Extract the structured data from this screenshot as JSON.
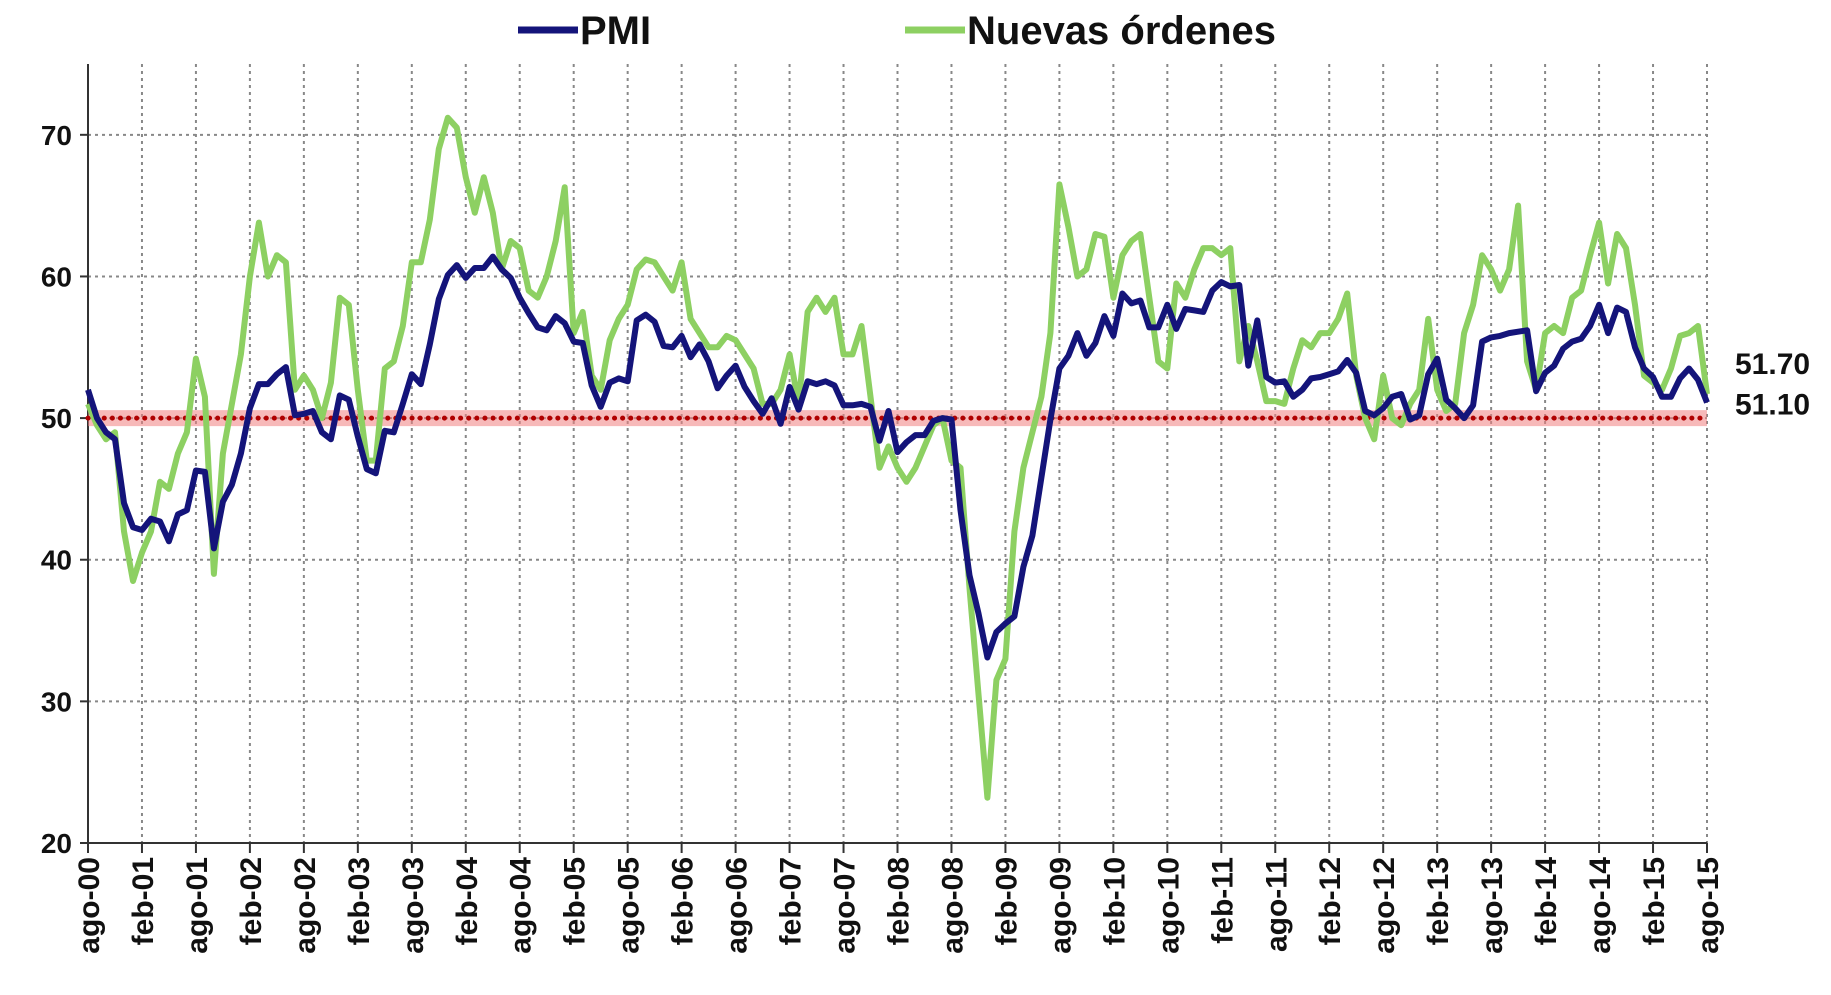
{
  "chart_data": {
    "type": "line",
    "categories": [
      "ago-00",
      null,
      null,
      null,
      null,
      null,
      "feb-01",
      null,
      null,
      null,
      null,
      null,
      "ago-01",
      null,
      null,
      null,
      null,
      null,
      "feb-02",
      null,
      null,
      null,
      null,
      null,
      "ago-02",
      null,
      null,
      null,
      null,
      null,
      "feb-03",
      null,
      null,
      null,
      null,
      null,
      "ago-03",
      null,
      null,
      null,
      null,
      null,
      "feb-04",
      null,
      null,
      null,
      null,
      null,
      "ago-04",
      null,
      null,
      null,
      null,
      null,
      "feb-05",
      null,
      null,
      null,
      null,
      null,
      "ago-05",
      null,
      null,
      null,
      null,
      null,
      "feb-06",
      null,
      null,
      null,
      null,
      null,
      "ago-06",
      null,
      null,
      null,
      null,
      null,
      "feb-07",
      null,
      null,
      null,
      null,
      null,
      "ago-07",
      null,
      null,
      null,
      null,
      null,
      "feb-08",
      null,
      null,
      null,
      null,
      null,
      "ago-08",
      null,
      null,
      null,
      null,
      null,
      "feb-09",
      null,
      null,
      null,
      null,
      null,
      "ago-09",
      null,
      null,
      null,
      null,
      null,
      "feb-10",
      null,
      null,
      null,
      null,
      null,
      "ago-10",
      null,
      null,
      null,
      null,
      null,
      "feb-11",
      null,
      null,
      null,
      null,
      null,
      "ago-11",
      null,
      null,
      null,
      null,
      null,
      "feb-12",
      null,
      null,
      null,
      null,
      null,
      "ago-12",
      null,
      null,
      null,
      null,
      null,
      "feb-13",
      null,
      null,
      null,
      null,
      null,
      "ago-13",
      null,
      null,
      null,
      null,
      null,
      "feb-14",
      null,
      null,
      null,
      null,
      null,
      "ago-14",
      null,
      null,
      null,
      null,
      null,
      "feb-15",
      null,
      null,
      null,
      null,
      null,
      "ago-15"
    ],
    "series": [
      {
        "name": "PMI",
        "color": "#14147a",
        "end_label": "51.10",
        "values": [
          52,
          50,
          49,
          48.5,
          44,
          42.3,
          42.1,
          42.9,
          42.7,
          41.3,
          43.2,
          43.5,
          46.3,
          46.2,
          40.8,
          44.1,
          45.3,
          47.5,
          50.7,
          52.4,
          52.4,
          53.1,
          53.6,
          50.2,
          50.3,
          50.5,
          49,
          48.5,
          51.6,
          51.3,
          48.7,
          46.4,
          46.1,
          49.1,
          49,
          51,
          53.1,
          52.4,
          55.2,
          58.4,
          60.1,
          60.8,
          59.9,
          60.6,
          60.6,
          61.4,
          60.5,
          59.9,
          58.5,
          57.4,
          56.4,
          56.2,
          57.2,
          56.7,
          55.4,
          55.3,
          52.3,
          50.8,
          52.5,
          52.8,
          52.6,
          56.9,
          57.3,
          56.8,
          55.1,
          55,
          55.8,
          54.3,
          55.2,
          54,
          52.1,
          53,
          53.7,
          52.2,
          51.2,
          50.3,
          51.4,
          49.6,
          52.2,
          50.6,
          52.6,
          52.4,
          52.6,
          52.3,
          50.9,
          50.9,
          51,
          50.8,
          48.4,
          50.5,
          47.6,
          48.3,
          48.8,
          48.8,
          49.8,
          50,
          49.9,
          43.5,
          38.9,
          36.2,
          33.1,
          34.9,
          35.5,
          36,
          39.5,
          41.7,
          45.8,
          49.9,
          53.5,
          54.4,
          56,
          54.4,
          55.3,
          57.2,
          55.8,
          58.8,
          58.1,
          58.3,
          56.4,
          56.4,
          58,
          56.3,
          57.7,
          57.6,
          57.5,
          59,
          59.6,
          59.3,
          59.4,
          53.7,
          56.9,
          52.9,
          52.5,
          52.6,
          51.5,
          52,
          52.8,
          52.9,
          53.1,
          53.3,
          54.1,
          53.2,
          50.5,
          50.2,
          50.7,
          51.5,
          51.7,
          49.9,
          50.2,
          53.1,
          54.2,
          51.3,
          50.7,
          50,
          50.9,
          55.4,
          55.7,
          55.8,
          56,
          56.1,
          56.2,
          51.9,
          53.2,
          53.7,
          54.9,
          55.4,
          55.6,
          56.5,
          58,
          56,
          57.8,
          57.5,
          55,
          53.5,
          52.9,
          51.5,
          51.5,
          52.8,
          53.5,
          52.7,
          51.1
        ]
      },
      {
        "name": "Nuevas órdenes",
        "color": "#8dd062",
        "end_label": "51.70",
        "values": [
          51,
          49.5,
          48.5,
          49,
          42,
          38.5,
          40.5,
          42,
          45.5,
          45,
          47.5,
          49,
          54.2,
          51.5,
          39,
          47.5,
          51,
          54.5,
          60,
          63.8,
          60,
          61.5,
          61,
          52,
          53,
          52,
          50,
          52.5,
          58.5,
          58,
          52,
          47,
          47,
          53.5,
          54,
          56.5,
          61,
          61,
          64,
          69,
          71.2,
          70.5,
          67,
          64.5,
          67,
          64.5,
          60.5,
          62.5,
          62,
          59,
          58.5,
          60,
          62.5,
          66.3,
          56,
          57.5,
          53,
          52,
          55.5,
          57,
          58,
          60.5,
          61.2,
          61,
          60,
          59,
          61,
          57,
          56,
          55,
          55,
          55.8,
          55.5,
          54.5,
          53.5,
          51,
          51,
          52,
          54.5,
          51,
          57.5,
          58.5,
          57.5,
          58.5,
          54.5,
          54.5,
          56.5,
          51.5,
          46.5,
          48,
          46.5,
          45.5,
          46.5,
          48,
          49.5,
          50,
          47,
          46.5,
          38,
          30.5,
          23.2,
          31.5,
          33,
          42,
          46.5,
          49,
          51.5,
          56,
          66.5,
          63.5,
          60,
          60.5,
          63,
          62.8,
          58.5,
          61.5,
          62.5,
          63,
          58.5,
          54,
          53.5,
          59.5,
          58.5,
          60.5,
          62,
          62,
          61.5,
          62,
          54,
          56.5,
          54,
          51.2,
          51.2,
          51,
          53.5,
          55.5,
          55,
          56,
          56,
          57,
          58.8,
          53,
          50,
          48.5,
          53,
          50,
          49.5,
          51,
          52,
          57,
          52,
          50.5,
          51,
          56,
          58,
          61.5,
          60.5,
          59,
          60.5,
          65,
          54,
          52,
          56,
          56.5,
          56,
          58.5,
          59,
          61.5,
          63.8,
          59.5,
          63,
          62,
          58,
          53,
          52.5,
          52,
          53.5,
          55.8,
          56,
          56.5,
          51.7
        ]
      }
    ],
    "reference_line": 50,
    "ylim": [
      20,
      75
    ],
    "yticks": [
      20,
      30,
      40,
      50,
      60,
      70
    ],
    "grid": true,
    "legend": "top"
  }
}
